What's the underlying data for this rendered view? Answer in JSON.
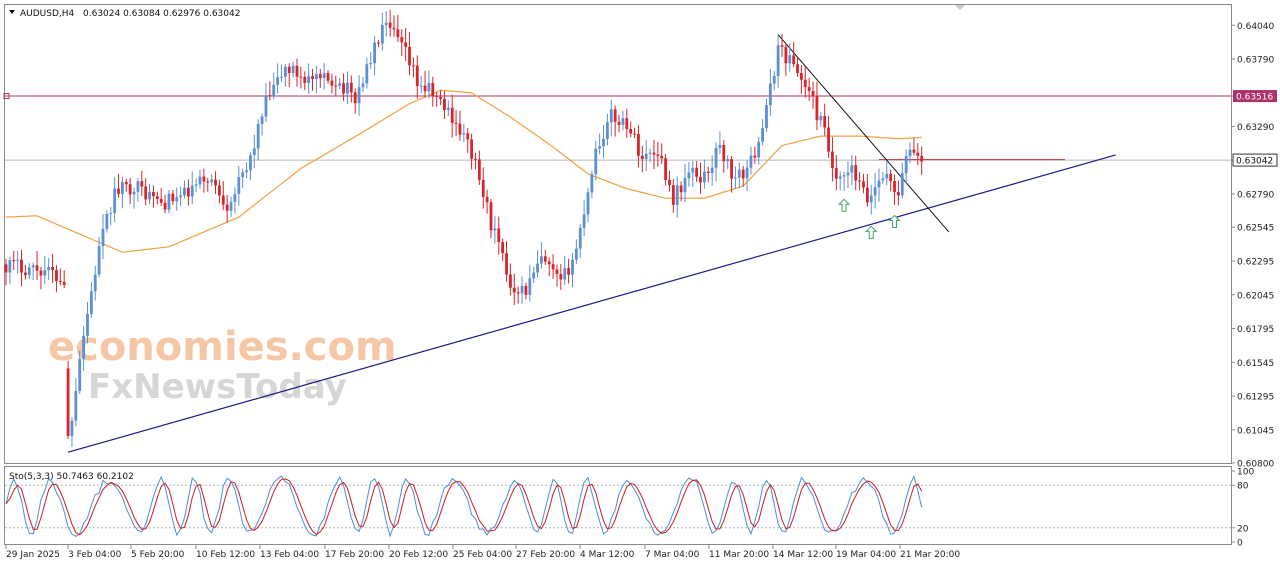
{
  "chart_data": {
    "type": "candlestick",
    "header": {
      "symbol_tf": "AUDUSD,H4",
      "ohlc": "0.63024 0.63084 0.62976 0.63042"
    },
    "y_ticks": [
      "0.64040",
      "0.63790",
      "0.63516",
      "0.63290",
      "0.63042",
      "0.62790",
      "0.62545",
      "0.62295",
      "0.62045",
      "0.61795",
      "0.61545",
      "0.61295",
      "0.61045",
      "0.60800"
    ],
    "ylim": [
      0.608,
      0.6419
    ],
    "x_ticks": [
      "29 Jan 2025",
      "3 Feb 04:00",
      "5 Feb 20:00",
      "10 Feb 12:00",
      "13 Feb 04:00",
      "17 Feb 20:00",
      "20 Feb 12:00",
      "25 Feb 04:00",
      "27 Feb 20:00",
      "4 Mar 12:00",
      "7 Mar 04:00",
      "11 Mar 20:00",
      "14 Mar 12:00",
      "19 Mar 04:00",
      "21 Mar 20:00"
    ],
    "levels": {
      "resistance": {
        "label": "0.63516",
        "price": 0.63516,
        "color": "#b0306a"
      },
      "current": {
        "label": "0.63042",
        "price": 0.63042,
        "color": "#9a9a9a"
      }
    },
    "ohlc_anchors": [
      {
        "i": 0,
        "p": 0.6227
      },
      {
        "i": 10,
        "p": 0.6223
      },
      {
        "i": 15,
        "p": 0.6215
      },
      {
        "i": 16,
        "p": 0.6094
      },
      {
        "i": 19,
        "p": 0.616
      },
      {
        "i": 24,
        "p": 0.6238
      },
      {
        "i": 28,
        "p": 0.628
      },
      {
        "i": 33,
        "p": 0.6286
      },
      {
        "i": 40,
        "p": 0.6272
      },
      {
        "i": 46,
        "p": 0.6278
      },
      {
        "i": 52,
        "p": 0.6292
      },
      {
        "i": 57,
        "p": 0.6272
      },
      {
        "i": 62,
        "p": 0.6296
      },
      {
        "i": 67,
        "p": 0.6347
      },
      {
        "i": 72,
        "p": 0.6372
      },
      {
        "i": 80,
        "p": 0.6362
      },
      {
        "i": 85,
        "p": 0.6364
      },
      {
        "i": 90,
        "p": 0.635
      },
      {
        "i": 95,
        "p": 0.6386
      },
      {
        "i": 97,
        "p": 0.6402
      },
      {
        "i": 100,
        "p": 0.6397
      },
      {
        "i": 103,
        "p": 0.6382
      },
      {
        "i": 106,
        "p": 0.6362
      },
      {
        "i": 110,
        "p": 0.6353
      },
      {
        "i": 115,
        "p": 0.6337
      },
      {
        "i": 120,
        "p": 0.631
      },
      {
        "i": 125,
        "p": 0.6258
      },
      {
        "i": 130,
        "p": 0.6212
      },
      {
        "i": 134,
        "p": 0.6208
      },
      {
        "i": 138,
        "p": 0.623
      },
      {
        "i": 143,
        "p": 0.6212
      },
      {
        "i": 147,
        "p": 0.6238
      },
      {
        "i": 152,
        "p": 0.6312
      },
      {
        "i": 156,
        "p": 0.6336
      },
      {
        "i": 160,
        "p": 0.6332
      },
      {
        "i": 164,
        "p": 0.6306
      },
      {
        "i": 168,
        "p": 0.6312
      },
      {
        "i": 172,
        "p": 0.6276
      },
      {
        "i": 176,
        "p": 0.6294
      },
      {
        "i": 180,
        "p": 0.6292
      },
      {
        "i": 184,
        "p": 0.6314
      },
      {
        "i": 188,
        "p": 0.6288
      },
      {
        "i": 192,
        "p": 0.6302
      },
      {
        "i": 196,
        "p": 0.634
      },
      {
        "i": 199,
        "p": 0.6388
      },
      {
        "i": 203,
        "p": 0.6375
      },
      {
        "i": 207,
        "p": 0.6354
      },
      {
        "i": 211,
        "p": 0.6324
      },
      {
        "i": 214,
        "p": 0.6285
      },
      {
        "i": 218,
        "p": 0.6296
      },
      {
        "i": 222,
        "p": 0.6274
      },
      {
        "i": 226,
        "p": 0.6295
      },
      {
        "i": 230,
        "p": 0.628
      },
      {
        "i": 233,
        "p": 0.6314
      },
      {
        "i": 236,
        "p": 0.6304
      }
    ],
    "ma": [
      {
        "i": 0,
        "p": 0.6262
      },
      {
        "i": 8,
        "p": 0.6263
      },
      {
        "i": 12,
        "p": 0.6258
      },
      {
        "i": 30,
        "p": 0.6236
      },
      {
        "i": 42,
        "p": 0.624
      },
      {
        "i": 60,
        "p": 0.6262
      },
      {
        "i": 76,
        "p": 0.6298
      },
      {
        "i": 92,
        "p": 0.6325
      },
      {
        "i": 104,
        "p": 0.6346
      },
      {
        "i": 112,
        "p": 0.6356
      },
      {
        "i": 120,
        "p": 0.6354
      },
      {
        "i": 130,
        "p": 0.6336
      },
      {
        "i": 140,
        "p": 0.6316
      },
      {
        "i": 150,
        "p": 0.6294
      },
      {
        "i": 160,
        "p": 0.6283
      },
      {
        "i": 170,
        "p": 0.6276
      },
      {
        "i": 180,
        "p": 0.6276
      },
      {
        "i": 190,
        "p": 0.6285
      },
      {
        "i": 200,
        "p": 0.6315
      },
      {
        "i": 210,
        "p": 0.6322
      },
      {
        "i": 220,
        "p": 0.6322
      },
      {
        "i": 230,
        "p": 0.632
      },
      {
        "i": 236,
        "p": 0.6321
      }
    ],
    "trendlines": [
      {
        "from": {
          "i": 16,
          "p": 0.6088
        },
        "to": {
          "i": 286,
          "p": 0.6308
        },
        "color": "#1a1a80"
      },
      {
        "from": {
          "i": 199,
          "p": 0.6397
        },
        "to": {
          "i": 243,
          "p": 0.6251
        },
        "color": "#111111"
      }
    ],
    "arrows": [
      {
        "i": 216,
        "p": 0.627
      },
      {
        "i": 223,
        "p": 0.625
      },
      {
        "i": 229,
        "p": 0.6258
      }
    ],
    "stochastic": {
      "label": "Sto(5,3,3) 50.7463 60.2102",
      "ticks": [
        "100",
        "80",
        "20",
        "0"
      ],
      "levels": [
        80,
        20
      ],
      "main_color": "#4a8fd8",
      "signal_color": "#d01c1c"
    },
    "watermark": {
      "line1": "economies.com",
      "line2": "FxNewsToday"
    }
  }
}
